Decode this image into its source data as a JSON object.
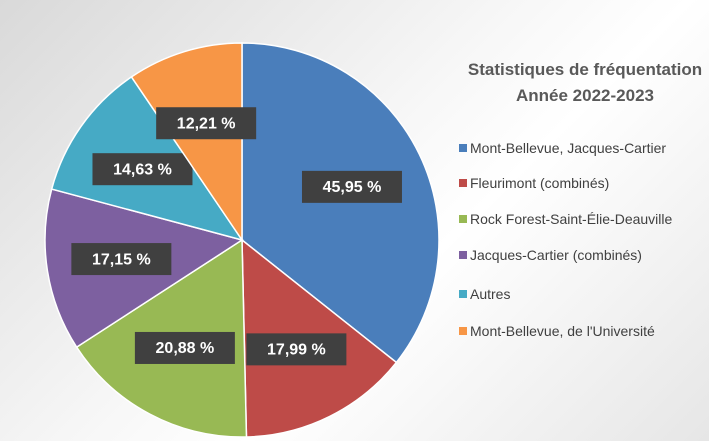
{
  "chart_data": {
    "type": "pie",
    "title": "Statistiques de fréquentation",
    "subtitle": "Année 2022-2023",
    "categories": [
      "Mont-Bellevue, Jacques-Cartier",
      "Fleurimont (combinés)",
      "Rock Forest-Saint-Élie-Deauville",
      "Jacques-Cartier (combinés)",
      "Autres",
      "Mont-Bellevue, de l'Université"
    ],
    "values": [
      45.95,
      17.99,
      20.88,
      17.15,
      14.63,
      12.21
    ],
    "value_labels": [
      "45,95 %",
      "17,99 %",
      "20,88 %",
      "17,15 %",
      "14,63 %",
      "12,21 %"
    ],
    "colors": [
      "#4a7ebb",
      "#be4b48",
      "#98b954",
      "#7d60a0",
      "#46aac5",
      "#f79646"
    ],
    "legend": "right"
  }
}
